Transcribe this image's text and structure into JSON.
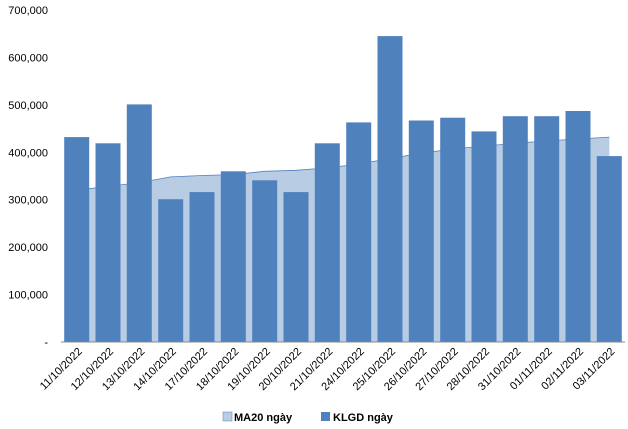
{
  "chart_data": {
    "type": "bar",
    "categories": [
      "11/10/2022",
      "12/10/2022",
      "13/10/2022",
      "14/10/2022",
      "17/10/2022",
      "18/10/2022",
      "19/10/2022",
      "20/10/2022",
      "21/10/2022",
      "24/10/2022",
      "25/10/2022",
      "26/10/2022",
      "27/10/2022",
      "28/10/2022",
      "31/10/2022",
      "01/11/2022",
      "02/11/2022",
      "03/11/2022"
    ],
    "series": [
      {
        "name": "MA20 ngày",
        "kind": "area",
        "color": "#b8cce4",
        "edge_color": "#4f81bd",
        "values": [
          320000,
          328000,
          336000,
          348000,
          351000,
          353000,
          360000,
          362000,
          367000,
          375000,
          387000,
          398000,
          407000,
          413000,
          419000,
          424000,
          428000,
          432000
        ]
      },
      {
        "name": "KLGD ngày",
        "kind": "bar",
        "color": "#4f81bd",
        "values": [
          432000,
          419000,
          501000,
          301000,
          316000,
          360000,
          341000,
          316000,
          419000,
          463000,
          645000,
          467000,
          473000,
          444000,
          476000,
          476000,
          487000,
          392000
        ]
      }
    ],
    "ylim": [
      0,
      700000
    ],
    "yticks": [
      "-",
      "100,000",
      "200,000",
      "300,000",
      "400,000",
      "500,000",
      "600,000",
      "700,000"
    ],
    "ytick_values": [
      0,
      100000,
      200000,
      300000,
      400000,
      500000,
      600000,
      700000
    ],
    "grid": false,
    "legend_position": "bottom"
  }
}
